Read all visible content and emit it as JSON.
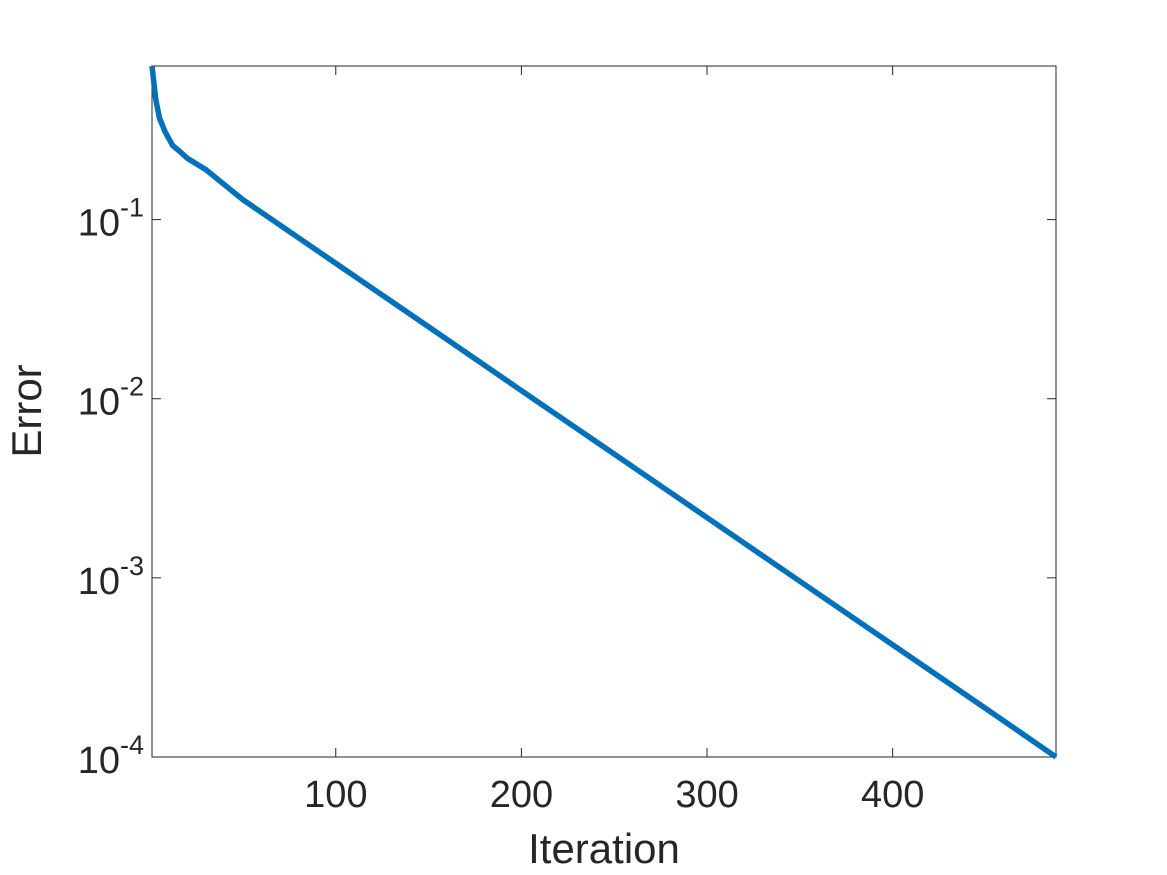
{
  "chart_data": {
    "type": "line",
    "log_y": true,
    "box": true,
    "x_label": "Iteration",
    "y_label": "Error",
    "x": [
      1,
      3,
      5,
      8,
      12,
      16,
      20,
      30,
      50,
      100,
      150,
      200,
      250,
      300,
      350,
      400,
      450,
      488
    ],
    "series": [
      {
        "color": "#0072bd",
        "values": [
          0.72,
          0.47,
          0.37,
          0.31,
          0.26,
          0.24,
          0.22,
          0.19,
          0.129,
          0.057,
          0.0252,
          0.0111,
          0.00491,
          0.00217,
          0.000957,
          0.000423,
          0.000187,
          0.0001
        ]
      }
    ],
    "xlim": [
      1,
      488
    ],
    "xticks": [
      100,
      200,
      300,
      400
    ],
    "ylim": [
      0.0001,
      0.72
    ],
    "yticks": [
      {
        "value": 0.0001,
        "label": "10",
        "exponent": "-4"
      },
      {
        "value": 0.001,
        "label": "10",
        "exponent": "-3"
      },
      {
        "value": 0.01,
        "label": "10",
        "exponent": "-2"
      },
      {
        "value": 0.1,
        "label": "10",
        "exponent": "-1"
      }
    ]
  }
}
